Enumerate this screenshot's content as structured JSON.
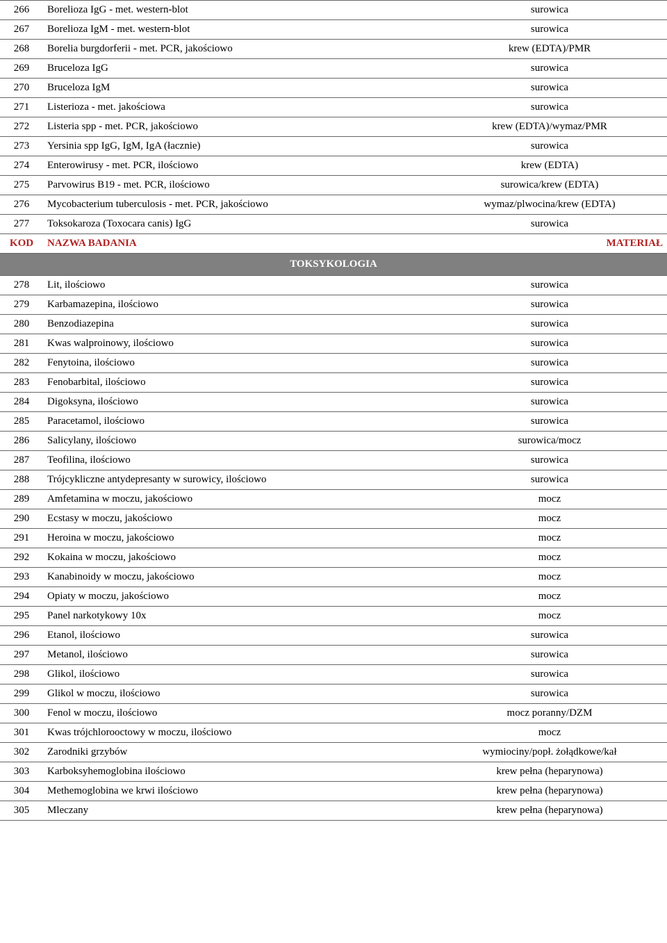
{
  "header": {
    "kod": "KOD",
    "nazwa": "NAZWA BADANIA",
    "material": "MATERIAŁ"
  },
  "section": {
    "title": "TOKSYKOLOGIA"
  },
  "rows1": [
    {
      "code": "266",
      "name": "Borelioza IgG - met. western-blot",
      "material": "surowica"
    },
    {
      "code": "267",
      "name": "Borelioza IgM - met. western-blot",
      "material": "surowica"
    },
    {
      "code": "268",
      "name": "Borelia burgdorferii - met. PCR, jakościowo",
      "material": "krew (EDTA)/PMR"
    },
    {
      "code": "269",
      "name": "Bruceloza IgG",
      "material": "surowica"
    },
    {
      "code": "270",
      "name": "Bruceloza IgM",
      "material": "surowica"
    },
    {
      "code": "271",
      "name": "Listerioza - met. jakościowa",
      "material": "surowica"
    },
    {
      "code": "272",
      "name": "Listeria spp - met. PCR, jakościowo",
      "material": "krew (EDTA)/wymaz/PMR"
    },
    {
      "code": "273",
      "name": "Yersinia spp IgG, IgM, IgA (łacznie)",
      "material": "surowica"
    },
    {
      "code": "274",
      "name": "Enterowirusy - met. PCR, ilościowo",
      "material": "krew (EDTA)"
    },
    {
      "code": "275",
      "name": "Parvowirus B19 - met. PCR, ilościowo",
      "material": "surowica/krew (EDTA)"
    },
    {
      "code": "276",
      "name": "Mycobacterium tuberculosis - met. PCR, jakościowo",
      "material": "wymaz/plwocina/krew (EDTA)"
    },
    {
      "code": "277",
      "name": "Toksokaroza (Toxocara canis) IgG",
      "material": "surowica"
    }
  ],
  "rows2": [
    {
      "code": "278",
      "name": "Lit, ilościowo",
      "material": "surowica"
    },
    {
      "code": "279",
      "name": "Karbamazepina, ilościowo",
      "material": "surowica"
    },
    {
      "code": "280",
      "name": "Benzodiazepina",
      "material": "surowica"
    },
    {
      "code": "281",
      "name": "Kwas walproinowy, ilościowo",
      "material": "surowica"
    },
    {
      "code": "282",
      "name": "Fenytoina, ilościowo",
      "material": "surowica"
    },
    {
      "code": "283",
      "name": "Fenobarbital, ilościowo",
      "material": "surowica"
    },
    {
      "code": "284",
      "name": "Digoksyna, ilościowo",
      "material": "surowica"
    },
    {
      "code": "285",
      "name": "Paracetamol, ilościowo",
      "material": "surowica"
    },
    {
      "code": "286",
      "name": "Salicylany, ilościowo",
      "material": "surowica/mocz"
    },
    {
      "code": "287",
      "name": "Teofilina, ilościowo",
      "material": "surowica"
    },
    {
      "code": "288",
      "name": "Trójcykliczne antydepresanty w surowicy, ilościowo",
      "material": "surowica"
    },
    {
      "code": "289",
      "name": "Amfetamina w moczu, jakościowo",
      "material": "mocz"
    },
    {
      "code": "290",
      "name": "Ecstasy w moczu, jakościowo",
      "material": "mocz"
    },
    {
      "code": "291",
      "name": "Heroina w moczu, jakościowo",
      "material": "mocz"
    },
    {
      "code": "292",
      "name": "Kokaina w moczu, jakościowo",
      "material": "mocz"
    },
    {
      "code": "293",
      "name": "Kanabinoidy w moczu, jakościowo",
      "material": "mocz"
    },
    {
      "code": "294",
      "name": "Opiaty w moczu, jakościowo",
      "material": "mocz"
    },
    {
      "code": "295",
      "name": "Panel narkotykowy 10x",
      "material": "mocz"
    },
    {
      "code": "296",
      "name": "Etanol, ilościowo",
      "material": "surowica"
    },
    {
      "code": "297",
      "name": "Metanol, ilościowo",
      "material": "surowica"
    },
    {
      "code": "298",
      "name": "Glikol, ilościowo",
      "material": "surowica"
    },
    {
      "code": "299",
      "name": "Glikol w moczu, ilościowo",
      "material": "surowica"
    },
    {
      "code": "300",
      "name": "Fenol w moczu, ilościowo",
      "material": "mocz poranny/DZM"
    },
    {
      "code": "301",
      "name": "Kwas trójchlorooctowy w moczu, ilościowo",
      "material": "mocz"
    },
    {
      "code": "302",
      "name": "Zarodniki grzybów",
      "material": "wymiociny/popł. żołądkowe/kał"
    },
    {
      "code": "303",
      "name": "Karboksyhemoglobina ilościowo",
      "material": "krew pełna (heparynowa)"
    },
    {
      "code": "304",
      "name": "Methemoglobina we krwi ilościowo",
      "material": "krew pełna (heparynowa)"
    },
    {
      "code": "305",
      "name": "Mleczany",
      "material": "krew pełna (heparynowa)"
    }
  ]
}
